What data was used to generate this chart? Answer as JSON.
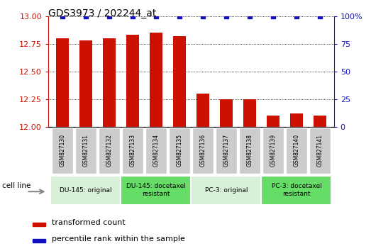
{
  "title": "GDS3973 / 202244_at",
  "samples": [
    "GSM827130",
    "GSM827131",
    "GSM827132",
    "GSM827133",
    "GSM827134",
    "GSM827135",
    "GSM827136",
    "GSM827137",
    "GSM827138",
    "GSM827139",
    "GSM827140",
    "GSM827141"
  ],
  "bar_values": [
    12.8,
    12.78,
    12.8,
    12.83,
    12.85,
    12.82,
    12.3,
    12.25,
    12.25,
    12.1,
    12.12,
    12.1
  ],
  "percentile_values": [
    100,
    100,
    100,
    100,
    100,
    100,
    100,
    100,
    100,
    100,
    100,
    100
  ],
  "bar_color": "#cc1100",
  "percentile_color": "#1111bb",
  "ylim_left": [
    12,
    13
  ],
  "ylim_right": [
    0,
    100
  ],
  "yticks_left": [
    12,
    12.25,
    12.5,
    12.75,
    13
  ],
  "yticks_right": [
    0,
    25,
    50,
    75,
    100
  ],
  "ytick_labels_right": [
    "0",
    "25",
    "50",
    "75",
    "100%"
  ],
  "groups": [
    {
      "label": "DU-145: original",
      "start": 0,
      "end": 3,
      "color": "#d8f0d8"
    },
    {
      "label": "DU-145: docetaxel\nresistant",
      "start": 3,
      "end": 6,
      "color": "#66dd66"
    },
    {
      "label": "PC-3: original",
      "start": 6,
      "end": 9,
      "color": "#d8f0d8"
    },
    {
      "label": "PC-3: docetaxel\nresistant",
      "start": 9,
      "end": 12,
      "color": "#66dd66"
    }
  ],
  "cell_line_label": "cell line",
  "legend_bar_label": "transformed count",
  "legend_pct_label": "percentile rank within the sample",
  "background_color": "#ffffff",
  "tick_area_color": "#cccccc",
  "bar_width": 0.55
}
